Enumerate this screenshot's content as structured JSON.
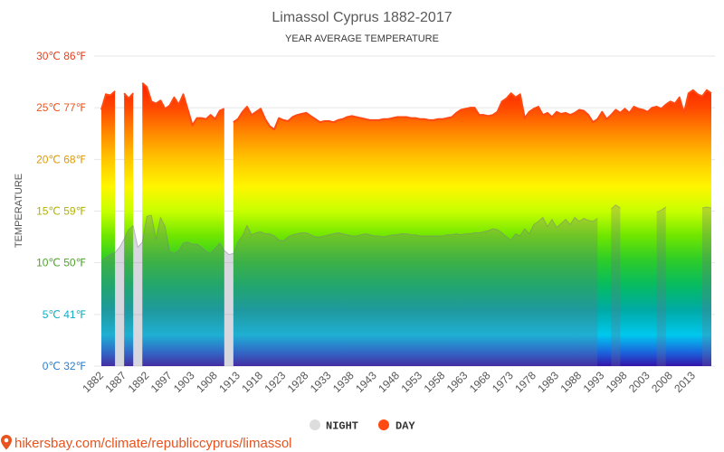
{
  "chart_data": {
    "type": "area",
    "title": "Limassol Cyprus 1882-2017",
    "subtitle": "YEAR AVERAGE TEMPERATURE",
    "ylabel": "TEMPERATURE",
    "ylim": [
      0,
      30
    ],
    "grid": true,
    "legend": "bottom",
    "yticks": [
      {
        "value": 0,
        "label": "0℃ 32℉",
        "color": "#2a80d0"
      },
      {
        "value": 5,
        "label": "5℃ 41℉",
        "color": "#10adc4"
      },
      {
        "value": 10,
        "label": "10℃ 50℉",
        "color": "#4ca62a"
      },
      {
        "value": 15,
        "label": "15℃ 59℉",
        "color": "#b3b300"
      },
      {
        "value": 20,
        "label": "20℃ 68℉",
        "color": "#e09a00"
      },
      {
        "value": 25,
        "label": "25℃ 77℉",
        "color": "#f2541b"
      },
      {
        "value": 30,
        "label": "30℃ 86℉",
        "color": "#e8401c"
      }
    ],
    "xticks": [
      "1882",
      "1887",
      "1892",
      "1897",
      "1903",
      "1908",
      "1913",
      "1918",
      "1923",
      "1928",
      "1933",
      "1938",
      "1943",
      "1948",
      "1953",
      "1958",
      "1963",
      "1968",
      "1973",
      "1978",
      "1983",
      "1988",
      "1993",
      "1998",
      "2003",
      "2008",
      "2013"
    ],
    "x": [
      1882,
      1883,
      1884,
      1885,
      1886,
      1887,
      1888,
      1889,
      1890,
      1891,
      1892,
      1893,
      1894,
      1895,
      1896,
      1897,
      1898,
      1899,
      1900,
      1902,
      1903,
      1904,
      1905,
      1906,
      1907,
      1908,
      1909,
      1910,
      1911,
      1912,
      1913,
      1914,
      1915,
      1916,
      1917,
      1918,
      1919,
      1920,
      1921,
      1922,
      1923,
      1924,
      1925,
      1926,
      1927,
      1928,
      1929,
      1930,
      1931,
      1932,
      1933,
      1934,
      1935,
      1936,
      1937,
      1938,
      1939,
      1940,
      1941,
      1942,
      1943,
      1944,
      1945,
      1946,
      1947,
      1948,
      1949,
      1950,
      1951,
      1952,
      1953,
      1954,
      1955,
      1956,
      1957,
      1958,
      1959,
      1960,
      1961,
      1962,
      1963,
      1964,
      1965,
      1966,
      1967,
      1968,
      1969,
      1970,
      1971,
      1972,
      1973,
      1974,
      1975,
      1976,
      1977,
      1978,
      1979,
      1980,
      1981,
      1982,
      1983,
      1984,
      1985,
      1986,
      1987,
      1988,
      1989,
      1990,
      1991,
      1992,
      1993,
      1994,
      1995,
      1996,
      1997,
      1998,
      1999,
      2000,
      2001,
      2002,
      2003,
      2004,
      2005,
      2006,
      2007,
      2008,
      2009,
      2010,
      2011,
      2012,
      2013,
      2014,
      2015,
      2016,
      2017
    ],
    "series": [
      {
        "name": "NIGHT",
        "color": "#dddddd",
        "values": [
          10.2,
          10.5,
          10.8,
          11.0,
          11.5,
          12.3,
          13.2,
          13.6,
          11.5,
          12.0,
          14.5,
          14.6,
          12.3,
          14.4,
          13.5,
          11.1,
          10.9,
          11.2,
          11.9,
          12.0,
          11.8,
          11.8,
          11.5,
          11.1,
          10.9,
          11.4,
          11.9,
          11.2,
          10.8,
          10.9,
          12.0,
          12.6,
          13.6,
          12.7,
          12.9,
          13.0,
          12.8,
          12.8,
          12.6,
          12.2,
          12.1,
          12.5,
          12.7,
          12.8,
          12.9,
          12.9,
          12.7,
          12.5,
          12.5,
          12.6,
          12.7,
          12.8,
          12.9,
          12.8,
          12.7,
          12.6,
          12.6,
          12.7,
          12.8,
          12.7,
          12.6,
          12.6,
          12.5,
          12.6,
          12.7,
          12.7,
          12.8,
          12.8,
          12.7,
          12.7,
          12.6,
          12.6,
          12.6,
          12.6,
          12.6,
          12.6,
          12.7,
          12.7,
          12.8,
          12.7,
          12.8,
          12.8,
          12.9,
          12.9,
          13.0,
          13.1,
          13.3,
          13.2,
          12.9,
          12.5,
          12.2,
          12.8,
          12.6,
          13.3,
          12.8,
          13.7,
          14.0,
          14.4,
          13.5,
          14.2,
          13.4,
          13.8,
          14.2,
          13.7,
          14.4,
          14.0,
          14.3,
          14.1,
          14.0,
          14.3,
          null,
          null,
          15.2,
          15.6,
          15.3,
          null,
          null,
          null,
          null,
          null,
          null,
          null,
          14.9,
          15.1,
          15.4,
          null,
          null,
          null,
          null,
          null,
          null,
          null,
          15.3,
          15.4,
          15.3
        ]
      },
      {
        "name": "DAY",
        "color": "#ff4a12",
        "values": [
          24.8,
          26.3,
          26.2,
          26.6,
          null,
          26.4,
          25.9,
          26.4,
          null,
          27.4,
          27.0,
          25.6,
          25.4,
          25.7,
          24.9,
          25.2,
          26.0,
          25.3,
          26.3,
          24.8,
          23.3,
          24.0,
          24.0,
          23.9,
          24.3,
          23.9,
          24.7,
          24.9,
          null,
          23.6,
          23.9,
          24.6,
          25.1,
          24.3,
          24.6,
          24.9,
          23.9,
          23.2,
          22.9,
          24.0,
          23.8,
          23.7,
          24.1,
          24.3,
          24.4,
          24.5,
          24.2,
          23.9,
          23.6,
          23.7,
          23.7,
          23.6,
          23.8,
          23.9,
          24.1,
          24.2,
          24.1,
          24.0,
          23.9,
          23.8,
          23.8,
          23.8,
          23.9,
          23.9,
          24.0,
          24.1,
          24.1,
          24.1,
          24.0,
          24.0,
          23.9,
          23.9,
          23.8,
          23.8,
          23.9,
          23.9,
          24.0,
          24.1,
          24.5,
          24.8,
          24.9,
          25.0,
          25.0,
          24.3,
          24.3,
          24.2,
          24.3,
          24.6,
          25.6,
          25.9,
          26.4,
          26.0,
          26.3,
          24.0,
          24.6,
          24.9,
          25.1,
          24.3,
          24.5,
          24.1,
          24.6,
          24.4,
          24.5,
          24.3,
          24.5,
          24.8,
          24.7,
          24.3,
          23.6,
          23.9,
          24.6,
          23.9,
          24.3,
          24.8,
          24.5,
          24.9,
          24.5,
          25.1,
          24.9,
          24.8,
          24.6,
          25.0,
          25.1,
          24.9,
          25.3,
          25.6,
          25.4,
          26.0,
          24.5,
          26.4,
          26.7,
          26.3,
          26.1,
          26.7,
          26.4
        ]
      }
    ]
  },
  "footer": {
    "link": "hikersbay.com/climate/republiccyprus/limassol",
    "color": "#e8531f",
    "icon": "location-pin-icon"
  }
}
